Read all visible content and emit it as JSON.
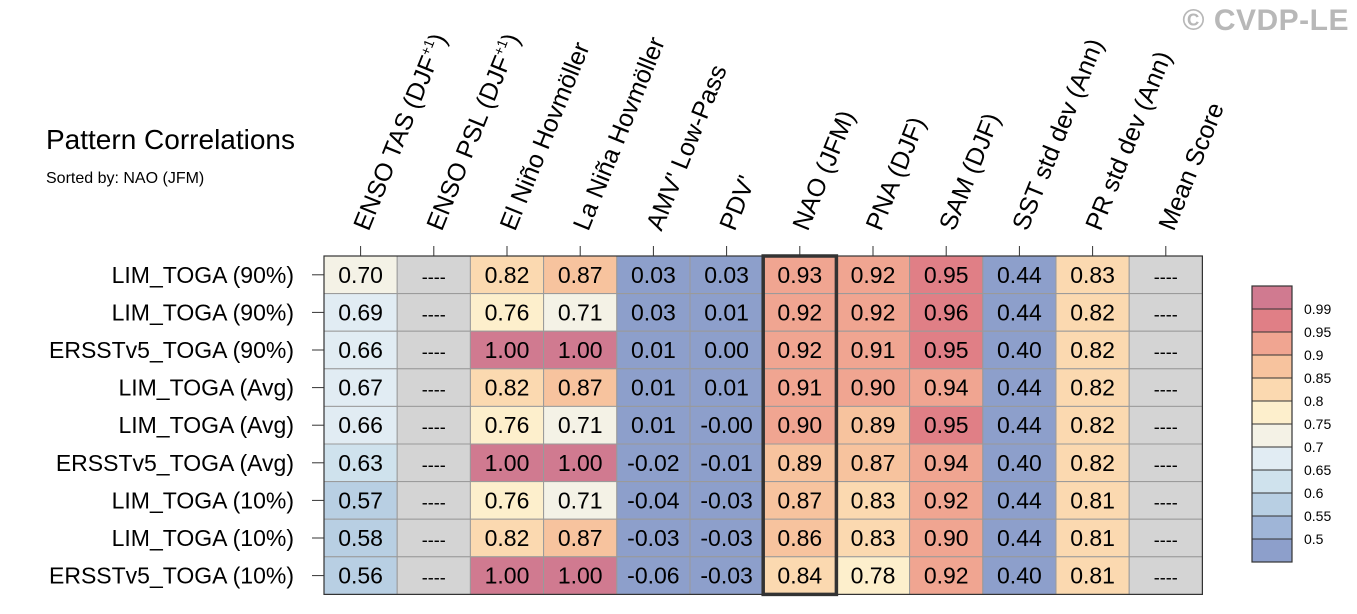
{
  "watermark": "© CVDP-LE",
  "chart_data": {
    "type": "heatmap",
    "title": "Pattern Correlations",
    "subtitle": "Sorted by: NAO (JFM)",
    "highlight_column": "NAO (JFM)",
    "columns": [
      {
        "label": "ENSO TAS (DJF",
        "sup": "+1",
        "tail": ")"
      },
      {
        "label": "ENSO PSL (DJF",
        "sup": "+1",
        "tail": ")"
      },
      {
        "label": "El Niño Hovmöller",
        "sup": "",
        "tail": ""
      },
      {
        "label": "La Niña Hovmöller",
        "sup": "",
        "tail": ""
      },
      {
        "label": "AMV' Low-Pass",
        "sup": "",
        "tail": ""
      },
      {
        "label": "PDV'",
        "sup": "",
        "tail": ""
      },
      {
        "label": "NAO (JFM)",
        "sup": "",
        "tail": ""
      },
      {
        "label": "PNA (DJF)",
        "sup": "",
        "tail": ""
      },
      {
        "label": "SAM (DJF)",
        "sup": "",
        "tail": ""
      },
      {
        "label": "SST std dev (Ann)",
        "sup": "",
        "tail": ""
      },
      {
        "label": "PR std dev (Ann)",
        "sup": "",
        "tail": ""
      },
      {
        "label": "Mean Score",
        "sup": "",
        "tail": ""
      }
    ],
    "rows": [
      "LIM_TOGA (90%)",
      "LIM_TOGA (90%)",
      "ERSSTv5_TOGA (90%)",
      "LIM_TOGA (Avg)",
      "LIM_TOGA (Avg)",
      "ERSSTv5_TOGA (Avg)",
      "LIM_TOGA (10%)",
      "LIM_TOGA (10%)",
      "ERSSTv5_TOGA (10%)"
    ],
    "missing_label": "----",
    "values": [
      [
        "0.70",
        null,
        "0.82",
        "0.87",
        "0.03",
        "0.03",
        "0.93",
        "0.92",
        "0.95",
        "0.44",
        "0.83",
        null
      ],
      [
        "0.69",
        null,
        "0.76",
        "0.71",
        "0.03",
        "0.01",
        "0.92",
        "0.92",
        "0.96",
        "0.44",
        "0.82",
        null
      ],
      [
        "0.66",
        null,
        "1.00",
        "1.00",
        "0.01",
        "0.00",
        "0.92",
        "0.91",
        "0.95",
        "0.40",
        "0.82",
        null
      ],
      [
        "0.67",
        null,
        "0.82",
        "0.87",
        "0.01",
        "0.01",
        "0.91",
        "0.90",
        "0.94",
        "0.44",
        "0.82",
        null
      ],
      [
        "0.66",
        null,
        "0.76",
        "0.71",
        "0.01",
        "-0.00",
        "0.90",
        "0.89",
        "0.95",
        "0.44",
        "0.82",
        null
      ],
      [
        "0.63",
        null,
        "1.00",
        "1.00",
        "-0.02",
        "-0.01",
        "0.89",
        "0.87",
        "0.94",
        "0.40",
        "0.82",
        null
      ],
      [
        "0.57",
        null,
        "0.76",
        "0.71",
        "-0.04",
        "-0.03",
        "0.87",
        "0.83",
        "0.92",
        "0.44",
        "0.81",
        null
      ],
      [
        "0.58",
        null,
        "0.82",
        "0.87",
        "-0.03",
        "-0.03",
        "0.86",
        "0.83",
        "0.90",
        "0.44",
        "0.81",
        null
      ],
      [
        "0.56",
        null,
        "1.00",
        "1.00",
        "-0.06",
        "-0.03",
        "0.84",
        "0.78",
        "0.92",
        "0.40",
        "0.81",
        null
      ]
    ],
    "colorbar": {
      "levels": [
        "0.99",
        "0.95",
        "0.9",
        "0.85",
        "0.8",
        "0.75",
        "0.7",
        "0.65",
        "0.6",
        "0.55",
        "0.5"
      ],
      "colors_top_to_bottom": [
        "#d07a90",
        "#e07f86",
        "#f0a591",
        "#f7c39e",
        "#fbd9b0",
        "#fdefcc",
        "#f4f2e6",
        "#e1ecf3",
        "#cfe2ed",
        "#b8cfe3",
        "#9fb5d7",
        "#8d9fcb"
      ],
      "missing_color": "#d4d4d4"
    }
  }
}
